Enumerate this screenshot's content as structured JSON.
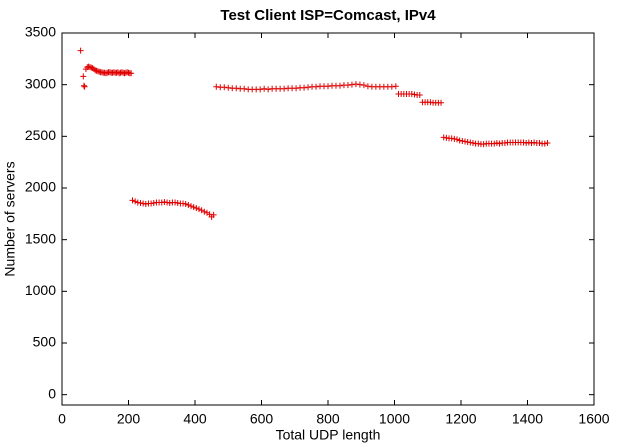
{
  "chart_data": {
    "type": "scatter",
    "title": "Test Client ISP=Comcast, IPv4",
    "xlabel": "Total UDP length",
    "ylabel": "Number of servers",
    "color": "#e00000",
    "marker": "plus",
    "xlim": [
      0,
      1600
    ],
    "xticks": [
      0,
      200,
      400,
      600,
      800,
      1000,
      1200,
      1400,
      1600
    ],
    "ylim": [
      -100,
      3500
    ],
    "yticks": [
      0,
      500,
      1000,
      1500,
      2000,
      2500,
      3000,
      3500
    ],
    "x": [
      56,
      64,
      66,
      68,
      72,
      76,
      80,
      84,
      88,
      92,
      96,
      100,
      104,
      108,
      112,
      116,
      120,
      124,
      128,
      132,
      136,
      140,
      144,
      148,
      152,
      156,
      160,
      164,
      168,
      172,
      176,
      180,
      184,
      188,
      192,
      196,
      200,
      204,
      208,
      212,
      220,
      228,
      236,
      244,
      252,
      260,
      268,
      276,
      284,
      292,
      300,
      308,
      316,
      324,
      332,
      340,
      348,
      356,
      364,
      372,
      380,
      388,
      396,
      404,
      412,
      420,
      428,
      436,
      444,
      450,
      456,
      464,
      476,
      488,
      500,
      512,
      524,
      536,
      548,
      560,
      572,
      584,
      596,
      608,
      620,
      632,
      644,
      656,
      668,
      680,
      692,
      704,
      716,
      728,
      740,
      752,
      764,
      776,
      788,
      800,
      812,
      824,
      836,
      848,
      860,
      872,
      884,
      896,
      908,
      920,
      932,
      944,
      956,
      968,
      980,
      992,
      1004,
      1012,
      1020,
      1028,
      1036,
      1044,
      1052,
      1060,
      1068,
      1076,
      1084,
      1092,
      1100,
      1108,
      1116,
      1124,
      1132,
      1140,
      1148,
      1156,
      1164,
      1172,
      1180,
      1188,
      1196,
      1204,
      1212,
      1220,
      1228,
      1236,
      1244,
      1252,
      1260,
      1268,
      1276,
      1284,
      1292,
      1300,
      1308,
      1316,
      1324,
      1332,
      1340,
      1348,
      1356,
      1364,
      1372,
      1380,
      1388,
      1396,
      1404,
      1412,
      1420,
      1428,
      1436,
      1444,
      1452,
      1460
    ],
    "values": [
      3330,
      3080,
      2990,
      2980,
      3150,
      3170,
      3175,
      3170,
      3165,
      3160,
      3150,
      3140,
      3135,
      3130,
      3125,
      3120,
      3120,
      3115,
      3115,
      3110,
      3115,
      3120,
      3120,
      3115,
      3115,
      3120,
      3115,
      3115,
      3120,
      3110,
      3115,
      3120,
      3115,
      3110,
      3115,
      3120,
      3115,
      3110,
      3110,
      1880,
      1870,
      1860,
      1855,
      1850,
      1845,
      1850,
      1850,
      1855,
      1860,
      1860,
      1860,
      1865,
      1860,
      1855,
      1860,
      1860,
      1855,
      1850,
      1850,
      1845,
      1835,
      1825,
      1815,
      1805,
      1795,
      1785,
      1770,
      1760,
      1745,
      1720,
      1740,
      2980,
      2975,
      2975,
      2970,
      2965,
      2965,
      2960,
      2960,
      2955,
      2955,
      2955,
      2955,
      2960,
      2955,
      2960,
      2960,
      2960,
      2960,
      2965,
      2965,
      2965,
      2970,
      2970,
      2975,
      2980,
      2980,
      2985,
      2985,
      2985,
      2990,
      2990,
      2990,
      2995,
      2995,
      3000,
      3005,
      3000,
      2995,
      2985,
      2980,
      2980,
      2980,
      2980,
      2980,
      2980,
      2985,
      2910,
      2910,
      2910,
      2910,
      2910,
      2910,
      2905,
      2900,
      2900,
      2830,
      2830,
      2830,
      2830,
      2825,
      2825,
      2825,
      2825,
      2490,
      2485,
      2480,
      2480,
      2475,
      2470,
      2460,
      2455,
      2450,
      2445,
      2440,
      2435,
      2430,
      2430,
      2425,
      2425,
      2430,
      2430,
      2430,
      2430,
      2435,
      2430,
      2435,
      2435,
      2440,
      2440,
      2440,
      2440,
      2440,
      2440,
      2440,
      2435,
      2440,
      2435,
      2440,
      2435,
      2435,
      2430,
      2430,
      2435
    ]
  }
}
